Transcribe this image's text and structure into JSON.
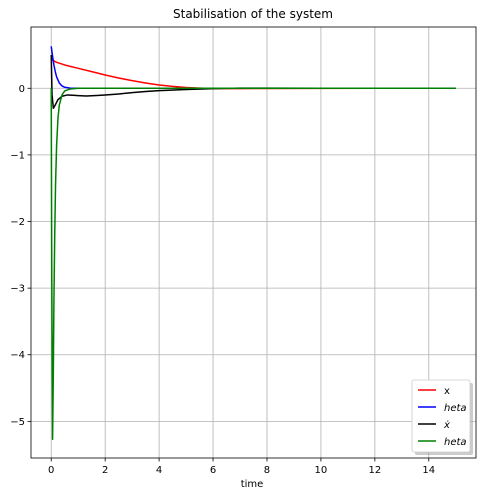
{
  "chart_data": {
    "type": "line",
    "title": "Stabilisation of the system",
    "xlabel": "time",
    "ylabel": "",
    "xlim": [
      -0.75,
      15.75
    ],
    "ylim": [
      -5.55,
      0.92
    ],
    "xticks": [
      0,
      2,
      4,
      6,
      8,
      10,
      12,
      14
    ],
    "yticks": [
      0,
      -1,
      -2,
      -3,
      -4,
      -5
    ],
    "xtick_labels": [
      "0",
      "2",
      "4",
      "6",
      "8",
      "10",
      "12",
      "14"
    ],
    "ytick_labels": [
      "0",
      "−1",
      "−2",
      "−3",
      "−4",
      "−5"
    ],
    "grid": true,
    "legend_position": "lower right",
    "series": [
      {
        "name": "x",
        "color": "#ff0000",
        "x": [
          0,
          0.05,
          0.2,
          0.5,
          1,
          1.5,
          2,
          2.5,
          3,
          3.5,
          4,
          4.5,
          5,
          5.5,
          6,
          7,
          8,
          10,
          12,
          15
        ],
        "y": [
          0.47,
          0.42,
          0.39,
          0.35,
          0.3,
          0.25,
          0.2,
          0.155,
          0.115,
          0.08,
          0.05,
          0.028,
          0.012,
          0.003,
          -0.003,
          -0.005,
          -0.003,
          -0.001,
          0,
          0
        ]
      },
      {
        "name": "heta",
        "color": "#0000ff",
        "x": [
          0,
          0.05,
          0.1,
          0.15,
          0.2,
          0.3,
          0.4,
          0.5,
          0.7,
          1,
          2,
          5,
          10,
          15
        ],
        "y": [
          0.63,
          0.48,
          0.35,
          0.25,
          0.17,
          0.08,
          0.035,
          0.015,
          0.003,
          0,
          0,
          0,
          0,
          0
        ]
      },
      {
        "name": "ẋ",
        "color": "#000000",
        "x": [
          0,
          0.03,
          0.08,
          0.15,
          0.25,
          0.4,
          0.6,
          0.8,
          1,
          1.3,
          1.6,
          2,
          2.5,
          3,
          3.5,
          4,
          5,
          6,
          7,
          8,
          10,
          15
        ],
        "y": [
          0.5,
          -0.1,
          -0.3,
          -0.25,
          -0.17,
          -0.12,
          -0.1,
          -0.105,
          -0.11,
          -0.115,
          -0.11,
          -0.1,
          -0.085,
          -0.065,
          -0.048,
          -0.035,
          -0.018,
          -0.005,
          0.002,
          0.003,
          0.001,
          0
        ]
      },
      {
        "name": "heta",
        "color": "#008000",
        "x": [
          0,
          0.02,
          0.05,
          0.08,
          0.1,
          0.13,
          0.16,
          0.2,
          0.25,
          0.3,
          0.4,
          0.5,
          0.7,
          1,
          2,
          5,
          10,
          15
        ],
        "y": [
          0,
          -2.8,
          -5.27,
          -4.2,
          -3.2,
          -2.2,
          -1.45,
          -0.85,
          -0.45,
          -0.25,
          -0.1,
          -0.04,
          -0.01,
          0,
          0,
          0,
          0,
          0
        ]
      }
    ]
  }
}
